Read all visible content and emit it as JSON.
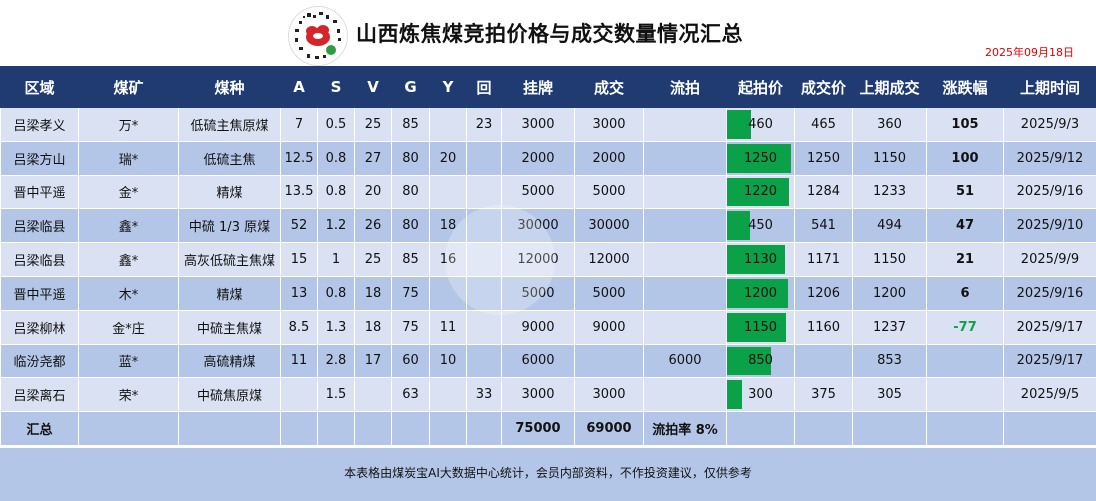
{
  "header": {
    "title": "山西炼焦煤竞拍价格与成交数量情况汇总",
    "date": "2025年09月18日"
  },
  "columns": [
    "区域",
    "煤矿",
    "煤种",
    "A",
    "S",
    "V",
    "G",
    "Y",
    "回",
    "挂牌",
    "成交",
    "流拍",
    "起拍价",
    "成交价",
    "上期成交",
    "涨跌幅",
    "上期时间"
  ],
  "bar_scale_max": 1250,
  "rows": [
    {
      "region": "吕梁孝义",
      "mine": "万*",
      "type": "低硫主焦原煤",
      "A": "7",
      "S": "0.5",
      "V": "25",
      "G": "85",
      "Y": "",
      "hui": "23",
      "listed": "3000",
      "deal": "3000",
      "liupai": "",
      "start_price": 460,
      "deal_price": "465",
      "prev_deal": "360",
      "change": "105",
      "prev_time": "2025/9/3"
    },
    {
      "region": "吕梁方山",
      "mine": "瑞*",
      "type": "低硫主焦",
      "A": "12.5",
      "S": "0.8",
      "V": "27",
      "G": "80",
      "Y": "20",
      "hui": "",
      "listed": "2000",
      "deal": "2000",
      "liupai": "",
      "start_price": 1250,
      "deal_price": "1250",
      "prev_deal": "1150",
      "change": "100",
      "prev_time": "2025/9/12"
    },
    {
      "region": "晋中平遥",
      "mine": "金*",
      "type": "精煤",
      "A": "13.5",
      "S": "0.8",
      "V": "20",
      "G": "80",
      "Y": "",
      "hui": "",
      "listed": "5000",
      "deal": "5000",
      "liupai": "",
      "start_price": 1220,
      "deal_price": "1284",
      "prev_deal": "1233",
      "change": "51",
      "prev_time": "2025/9/16"
    },
    {
      "region": "吕梁临县",
      "mine": "鑫*",
      "type": "中硫 1/3 原煤",
      "A": "52",
      "S": "1.2",
      "V": "26",
      "G": "80",
      "Y": "18",
      "hui": "",
      "listed": "30000",
      "deal": "30000",
      "liupai": "",
      "start_price": 450,
      "deal_price": "541",
      "prev_deal": "494",
      "change": "47",
      "prev_time": "2025/9/10"
    },
    {
      "region": "吕梁临县",
      "mine": "鑫*",
      "type": "高灰低硫主焦煤",
      "A": "15",
      "S": "1",
      "V": "25",
      "G": "85",
      "Y": "16",
      "hui": "",
      "listed": "12000",
      "deal": "12000",
      "liupai": "",
      "start_price": 1130,
      "deal_price": "1171",
      "prev_deal": "1150",
      "change": "21",
      "prev_time": "2025/9/9"
    },
    {
      "region": "晋中平遥",
      "mine": "木*",
      "type": "精煤",
      "A": "13",
      "S": "0.8",
      "V": "18",
      "G": "75",
      "Y": "",
      "hui": "",
      "listed": "5000",
      "deal": "5000",
      "liupai": "",
      "start_price": 1200,
      "deal_price": "1206",
      "prev_deal": "1200",
      "change": "6",
      "prev_time": "2025/9/16"
    },
    {
      "region": "吕梁柳林",
      "mine": "金*庄",
      "type": "中硫主焦煤",
      "A": "8.5",
      "S": "1.3",
      "V": "18",
      "G": "75",
      "Y": "11",
      "hui": "",
      "listed": "9000",
      "deal": "9000",
      "liupai": "",
      "start_price": 1150,
      "deal_price": "1160",
      "prev_deal": "1237",
      "change": "-77",
      "prev_time": "2025/9/17"
    },
    {
      "region": "临汾尧都",
      "mine": "蓝*",
      "type": "高硫精煤",
      "A": "11",
      "S": "2.8",
      "V": "17",
      "G": "60",
      "Y": "10",
      "hui": "",
      "listed": "6000",
      "deal": "",
      "liupai": "6000",
      "start_price": 850,
      "deal_price": "",
      "prev_deal": "853",
      "change": "",
      "prev_time": "2025/9/17"
    },
    {
      "region": "吕梁离石",
      "mine": "荣*",
      "type": "中硫焦原煤",
      "A": "",
      "S": "1.5",
      "V": "",
      "G": "63",
      "Y": "",
      "hui": "33",
      "listed": "3000",
      "deal": "3000",
      "liupai": "",
      "start_price": 300,
      "deal_price": "375",
      "prev_deal": "305",
      "change": "",
      "prev_time": "2025/9/5"
    }
  ],
  "summary": {
    "label": "汇总",
    "listed": "75000",
    "deal": "69000",
    "liupai_rate": "流拍率 8%"
  },
  "colors": {
    "header_bg": "#1f3b72",
    "row_light": "#d9e1f2",
    "row_dark": "#b4c6e7",
    "bar": "#0aa148",
    "rise": "#e00000",
    "fall": "#12a04a"
  },
  "footer": {
    "note": "本表格由煤炭宝AI大数据中心统计，会员内部资料，不作投资建议，仅供参考"
  }
}
